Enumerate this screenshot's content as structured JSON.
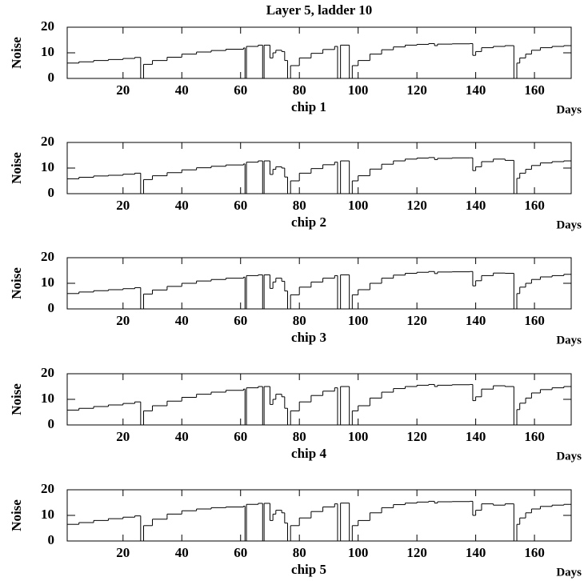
{
  "chart_data": [
    {
      "type": "step",
      "title": "Layer 5, ladder 10",
      "caption": "chip 1",
      "xlabel": "Days",
      "ylabel": "Noise",
      "color": "#000000",
      "xlim": [
        1,
        172.5
      ],
      "ylim": [
        0,
        20
      ],
      "xticks": [
        20,
        40,
        60,
        80,
        100,
        120,
        140,
        160
      ],
      "yticks": [
        0,
        10,
        20
      ],
      "x": [
        1,
        5,
        10,
        15,
        20,
        24,
        26,
        27,
        30,
        35,
        40,
        45,
        50,
        55,
        61,
        61.5,
        62,
        66,
        67.5,
        68,
        70,
        71,
        72,
        74,
        75,
        76,
        77,
        80,
        84,
        88,
        92,
        93,
        94,
        96,
        97,
        98,
        100,
        104,
        108,
        112,
        116,
        120,
        124,
        126,
        127,
        132,
        138,
        139,
        140,
        142,
        146,
        150,
        153,
        154,
        155,
        157,
        159,
        162,
        166,
        170
      ],
      "values": [
        6,
        6.5,
        7,
        7.4,
        7.8,
        8.2,
        0,
        5.5,
        7,
        8.3,
        9.5,
        10.3,
        10.9,
        11.4,
        11.9,
        0,
        12.5,
        13,
        0,
        13,
        8,
        10,
        11,
        10.5,
        7,
        0,
        5,
        8,
        9.8,
        11.3,
        12.5,
        0,
        13,
        13,
        0,
        5,
        7,
        9.5,
        11.2,
        12.3,
        13,
        13.3,
        13.6,
        12.8,
        13.4,
        13.5,
        13.6,
        9,
        10.5,
        12,
        12.5,
        12.8,
        0,
        6,
        8,
        9.5,
        11,
        12,
        12.5,
        12.8
      ]
    },
    {
      "type": "step",
      "caption": "chip 2",
      "xlabel": "Days",
      "ylabel": "Noise",
      "color": "#000000",
      "xlim": [
        1,
        172.5
      ],
      "ylim": [
        0,
        20
      ],
      "xticks": [
        20,
        40,
        60,
        80,
        100,
        120,
        140,
        160
      ],
      "yticks": [
        0,
        10,
        20
      ],
      "x": [
        1,
        5,
        10,
        15,
        20,
        24,
        26,
        27,
        30,
        35,
        40,
        45,
        50,
        55,
        61,
        61.5,
        62,
        66,
        67.5,
        68,
        70,
        71,
        72,
        74,
        75,
        76,
        77,
        80,
        84,
        88,
        92,
        93,
        94,
        96,
        97,
        98,
        100,
        104,
        108,
        112,
        116,
        120,
        124,
        126,
        127,
        132,
        138,
        139,
        140,
        142,
        146,
        150,
        153,
        154,
        155,
        157,
        159,
        162,
        166,
        170
      ],
      "values": [
        5.8,
        6.4,
        6.9,
        7.2,
        7.6,
        8,
        0,
        5.5,
        7,
        8.2,
        9.3,
        10.1,
        10.7,
        11.2,
        11.6,
        0,
        12.3,
        12.8,
        0,
        12.8,
        7.5,
        9.5,
        10.5,
        10,
        6.5,
        0,
        5,
        8,
        9.8,
        11.3,
        12.3,
        0,
        12.8,
        12.8,
        0,
        5,
        7,
        9.6,
        11.5,
        12.8,
        13.5,
        13.9,
        14.1,
        13.3,
        13.8,
        14,
        14,
        9,
        10.5,
        12.5,
        13.5,
        13,
        0,
        6,
        8,
        9.5,
        11,
        12,
        12.5,
        12.8
      ]
    },
    {
      "type": "step",
      "caption": "chip 3",
      "xlabel": "Days",
      "ylabel": "Noise",
      "color": "#000000",
      "xlim": [
        1,
        172.5
      ],
      "ylim": [
        0,
        20
      ],
      "xticks": [
        20,
        40,
        60,
        80,
        100,
        120,
        140,
        160
      ],
      "yticks": [
        0,
        10,
        20
      ],
      "x": [
        1,
        5,
        10,
        15,
        20,
        24,
        26,
        27,
        30,
        35,
        40,
        45,
        50,
        55,
        61,
        61.5,
        62,
        66,
        67.5,
        68,
        70,
        71,
        72,
        74,
        75,
        76,
        77,
        80,
        84,
        88,
        92,
        93,
        94,
        96,
        97,
        98,
        100,
        104,
        108,
        112,
        116,
        120,
        124,
        126,
        127,
        132,
        138,
        139,
        140,
        142,
        146,
        150,
        153,
        154,
        155,
        157,
        159,
        162,
        166,
        170
      ],
      "values": [
        6,
        6.6,
        7.1,
        7.5,
        7.9,
        8.3,
        0,
        5.8,
        7.4,
        8.8,
        10,
        10.9,
        11.5,
        12,
        12.4,
        0,
        13,
        13.3,
        0,
        13.3,
        8,
        10.5,
        12,
        10.8,
        7,
        0,
        5.5,
        8.5,
        10.5,
        12,
        13,
        0,
        13.3,
        13.3,
        0,
        5.5,
        7.5,
        10,
        12,
        13.2,
        13.9,
        14.3,
        14.6,
        13.8,
        14.4,
        14.5,
        14.6,
        9,
        11,
        13,
        14,
        13.9,
        0,
        6,
        8.5,
        10,
        11.5,
        12.5,
        13,
        13.5
      ]
    },
    {
      "type": "step",
      "caption": "chip 4",
      "xlabel": "Days",
      "ylabel": "Noise",
      "color": "#000000",
      "xlim": [
        1,
        172.5
      ],
      "ylim": [
        0,
        20
      ],
      "xticks": [
        20,
        40,
        60,
        80,
        100,
        120,
        140,
        160
      ],
      "yticks": [
        0,
        10,
        20
      ],
      "x": [
        1,
        5,
        10,
        15,
        20,
        24,
        26,
        27,
        30,
        35,
        40,
        45,
        50,
        55,
        61,
        61.5,
        62,
        66,
        67.5,
        68,
        70,
        71,
        72,
        74,
        75,
        76,
        77,
        80,
        84,
        88,
        92,
        93,
        94,
        96,
        97,
        98,
        100,
        104,
        108,
        112,
        116,
        120,
        124,
        126,
        127,
        132,
        138,
        139,
        140,
        142,
        146,
        150,
        153,
        154,
        155,
        157,
        159,
        162,
        166,
        170
      ],
      "values": [
        5.8,
        6.5,
        7.2,
        7.8,
        8.4,
        9,
        0,
        5.5,
        7.5,
        9.3,
        10.8,
        12,
        12.8,
        13.5,
        14,
        0,
        14.5,
        15,
        0,
        15,
        8,
        10,
        12,
        11,
        6.5,
        0,
        5.5,
        9,
        11.5,
        13.2,
        14.5,
        0,
        15,
        15,
        0,
        5.5,
        7.5,
        10.5,
        12.8,
        14.2,
        15,
        15.5,
        15.8,
        15,
        15.5,
        15.7,
        15.8,
        9.5,
        11,
        14,
        15.3,
        15,
        0,
        6,
        8.5,
        10.5,
        12.5,
        13.8,
        14.5,
        15
      ]
    },
    {
      "type": "step",
      "caption": "chip 5",
      "xlabel": "Days",
      "ylabel": "Noise",
      "color": "#000000",
      "xlim": [
        1,
        172.5
      ],
      "ylim": [
        0,
        20
      ],
      "xticks": [
        20,
        40,
        60,
        80,
        100,
        120,
        140,
        160
      ],
      "yticks": [
        0,
        10,
        20
      ],
      "x": [
        1,
        5,
        10,
        15,
        20,
        24,
        26,
        27,
        30,
        35,
        40,
        45,
        50,
        55,
        61,
        61.5,
        62,
        66,
        67.5,
        68,
        70,
        71,
        72,
        74,
        75,
        76,
        77,
        80,
        84,
        88,
        92,
        93,
        94,
        96,
        97,
        98,
        100,
        104,
        108,
        112,
        116,
        120,
        124,
        126,
        127,
        132,
        138,
        139,
        140,
        142,
        146,
        150,
        153,
        154,
        155,
        157,
        159,
        162,
        166,
        170
      ],
      "values": [
        6.5,
        7.2,
        8,
        8.7,
        9.3,
        9.8,
        0,
        6,
        8.5,
        10.5,
        11.8,
        12.5,
        13,
        13.3,
        13.6,
        0,
        14.3,
        14.7,
        0,
        14.7,
        8,
        10.5,
        12,
        11,
        7,
        0,
        6,
        9,
        11.5,
        13.3,
        14.5,
        0,
        14.8,
        14.8,
        0,
        6,
        8,
        11,
        13,
        14.2,
        14.8,
        15.2,
        15.5,
        14.8,
        15.3,
        15.4,
        15.5,
        10,
        12,
        14.5,
        14,
        14.5,
        0,
        6.5,
        9,
        11,
        12.5,
        13.5,
        14,
        14.3
      ]
    }
  ]
}
